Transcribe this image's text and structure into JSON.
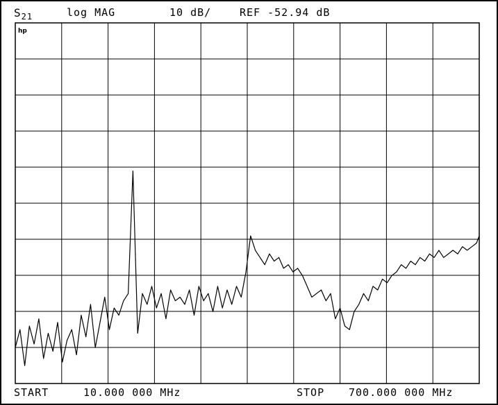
{
  "header": {
    "parameter_main": "S",
    "parameter_sub": "21",
    "format": "log MAG",
    "scale": "10 dB/",
    "reference": "REF -52.94 dB"
  },
  "footer": {
    "start_label": "START",
    "start_value": "10.000 000 MHz",
    "stop_label": "STOP",
    "stop_value": "700.000 000 MHz"
  },
  "logo_text": "hp",
  "chart_data": {
    "type": "line",
    "x_unit": "MHz",
    "y_unit": "dB",
    "xlim": [
      10,
      700
    ],
    "ylim": [
      -142.94,
      -42.94
    ],
    "y_divisions": 10,
    "x_divisions": 10,
    "grid": true,
    "trace_color": "#000000",
    "series": [
      {
        "x": [
          10,
          17,
          24,
          31,
          38,
          45,
          52,
          59,
          66,
          73,
          80,
          87,
          94,
          101,
          108,
          115,
          122,
          129,
          136,
          143,
          150,
          157,
          164,
          171,
          178,
          185,
          192,
          199,
          206,
          213,
          220,
          227,
          234,
          241,
          248,
          255,
          262,
          269,
          276,
          283,
          290,
          297,
          304,
          311,
          318,
          325,
          332,
          339,
          346,
          353,
          360,
          367,
          374,
          381,
          388,
          395,
          402,
          409,
          416,
          423,
          430,
          437,
          444,
          451,
          458,
          465,
          472,
          479,
          486,
          493,
          500,
          507,
          514,
          521,
          528,
          535,
          542,
          549,
          556,
          563,
          570,
          577,
          584,
          591,
          598,
          605,
          612,
          619,
          626,
          633,
          640,
          647,
          654,
          661,
          668,
          675,
          682,
          689,
          696,
          700
        ],
        "y": [
          -133,
          -128,
          -138,
          -127,
          -132,
          -125,
          -136,
          -129,
          -134,
          -126,
          -137,
          -131,
          -128,
          -135,
          -124,
          -130,
          -121,
          -133,
          -126,
          -119,
          -128,
          -122,
          -124,
          -120,
          -118,
          -84,
          -129,
          -118,
          -121,
          -116,
          -122,
          -118,
          -125,
          -117,
          -120,
          -119,
          -121,
          -117,
          -124,
          -116,
          -120,
          -118,
          -123,
          -116,
          -122,
          -117,
          -121,
          -116,
          -119,
          -112,
          -102,
          -106,
          -108,
          -110,
          -107,
          -109,
          -108,
          -111,
          -110,
          -112,
          -111,
          -113,
          -116,
          -119,
          -118,
          -117,
          -120,
          -118,
          -125,
          -122,
          -127,
          -128,
          -123,
          -121,
          -118,
          -120,
          -116,
          -117,
          -114,
          -115,
          -113,
          -112,
          -110,
          -111,
          -109,
          -110,
          -108,
          -109,
          -107,
          -108,
          -106,
          -108,
          -107,
          -106,
          -107,
          -105,
          -106,
          -105,
          -104,
          -102
        ]
      }
    ]
  }
}
